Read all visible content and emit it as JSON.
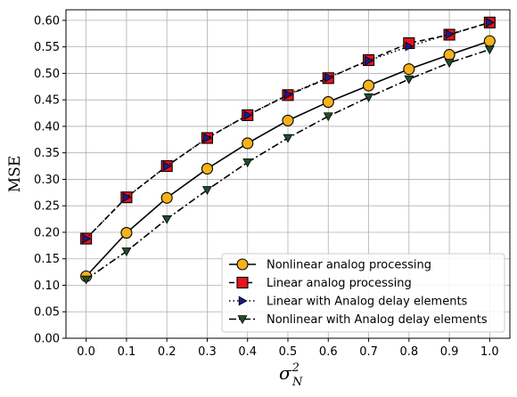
{
  "chart_data": {
    "type": "line",
    "x": [
      0.0,
      0.1,
      0.2,
      0.3,
      0.4,
      0.5,
      0.6,
      0.7,
      0.8,
      0.9,
      1.0
    ],
    "xticks": [
      "0.0",
      "0.1",
      "0.2",
      "0.3",
      "0.4",
      "0.5",
      "0.6",
      "0.7",
      "0.8",
      "0.9",
      "1.0"
    ],
    "yticks": [
      "0.00",
      "0.05",
      "0.10",
      "0.15",
      "0.20",
      "0.25",
      "0.30",
      "0.35",
      "0.40",
      "0.45",
      "0.50",
      "0.55",
      "0.60"
    ],
    "xlim": [
      -0.05,
      1.05
    ],
    "ylim": [
      0.0,
      0.62
    ],
    "xlabel": "σ",
    "xlabel_sup": "2",
    "xlabel_sub": "N",
    "ylabel": "MSE",
    "grid": true,
    "legend_position": "lower-right",
    "series": [
      {
        "name": "Nonlinear analog processing",
        "values": [
          0.117,
          0.199,
          0.265,
          0.32,
          0.368,
          0.411,
          0.446,
          0.477,
          0.508,
          0.535,
          0.561
        ],
        "color": "#000000",
        "marker_color": "#f5b21a",
        "marker": "circle",
        "line": "solid"
      },
      {
        "name": "Linear analog processing",
        "values": [
          0.188,
          0.266,
          0.325,
          0.378,
          0.421,
          0.459,
          0.491,
          0.525,
          0.557,
          0.573,
          0.596
        ],
        "color": "#000000",
        "marker_color": "#e8121c",
        "marker": "square",
        "line": "dashed"
      },
      {
        "name": "Linear with Analog delay elements",
        "values": [
          0.188,
          0.266,
          0.325,
          0.378,
          0.421,
          0.46,
          0.492,
          0.524,
          0.551,
          0.574,
          0.596
        ],
        "color": "#000000",
        "marker_color": "#1a1a8c",
        "marker": "triangle-right",
        "line": "dotted"
      },
      {
        "name": "Nonlinear with Analog delay elements",
        "values": [
          0.111,
          0.164,
          0.225,
          0.28,
          0.332,
          0.378,
          0.419,
          0.455,
          0.489,
          0.52,
          0.545
        ],
        "color": "#000000",
        "marker_color": "#1f4d2a",
        "marker": "triangle-down",
        "line": "dashdot"
      }
    ]
  }
}
